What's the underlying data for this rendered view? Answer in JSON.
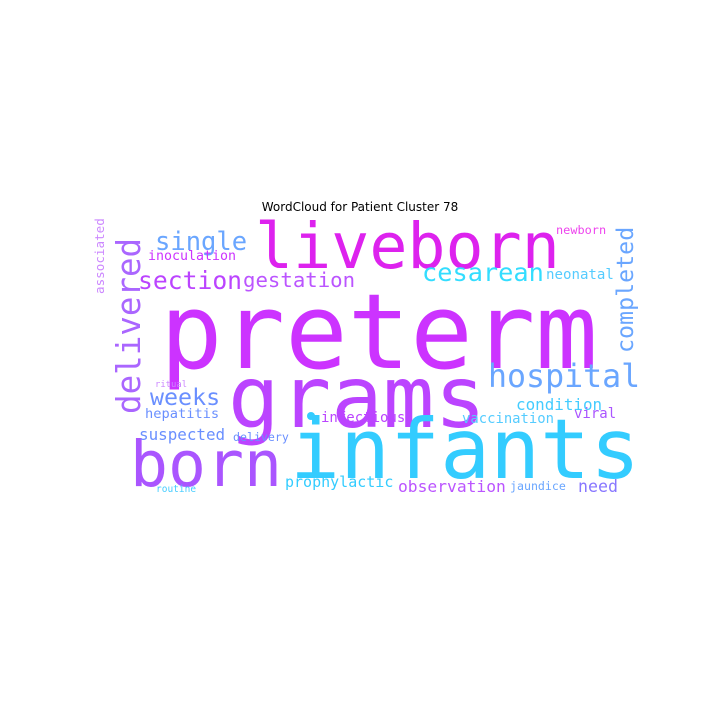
{
  "chart_data": {
    "type": "wordcloud",
    "title": "WordCloud for Patient Cluster 78",
    "colors": {
      "purple": "#cc33ff",
      "magenta": "#dd22ee",
      "violet": "#b455ff",
      "cyan": "#33ccff",
      "blue": "#6aa6ff",
      "lavender": "#aa77ff",
      "pink": "#ee44ee"
    },
    "words": [
      {
        "text": "preterm",
        "weight": 1.0,
        "color": "#cc33ff",
        "orientation": "horizontal"
      },
      {
        "text": "grams",
        "weight": 0.92,
        "color": "#bb44ff",
        "orientation": "horizontal"
      },
      {
        "text": "infants",
        "weight": 0.89,
        "color": "#33ccff",
        "orientation": "horizontal"
      },
      {
        "text": "born",
        "weight": 0.68,
        "color": "#aa55ff",
        "orientation": "horizontal"
      },
      {
        "text": "liveborn",
        "weight": 0.66,
        "color": "#dd22ee",
        "orientation": "horizontal"
      },
      {
        "text": "delivered",
        "weight": 0.39,
        "color": "#aa66ff",
        "orientation": "vertical"
      },
      {
        "text": "hospital",
        "weight": 0.37,
        "color": "#6aa6ff",
        "orientation": "horizontal"
      },
      {
        "text": "single",
        "weight": 0.28,
        "color": "#6aa6ff",
        "orientation": "horizontal"
      },
      {
        "text": "completed",
        "weight": 0.28,
        "color": "#6aa6ff",
        "orientation": "vertical"
      },
      {
        "text": "cesarean",
        "weight": 0.27,
        "color": "#33ddff",
        "orientation": "horizontal"
      },
      {
        "text": "section",
        "weight": 0.25,
        "color": "#bb44ff",
        "orientation": "horizontal"
      },
      {
        "text": "gestation",
        "weight": 0.24,
        "color": "#bb55ff",
        "orientation": "horizontal"
      },
      {
        "text": "weeks",
        "weight": 0.22,
        "color": "#6a8fff",
        "orientation": "horizontal"
      },
      {
        "text": "condition",
        "weight": 0.16,
        "color": "#44ccff",
        "orientation": "horizontal"
      },
      {
        "text": "suspected",
        "weight": 0.16,
        "color": "#6a8fff",
        "orientation": "horizontal"
      },
      {
        "text": "observation",
        "weight": 0.15,
        "color": "#bb55ff",
        "orientation": "horizontal"
      },
      {
        "text": "need",
        "weight": 0.15,
        "color": "#8877ff",
        "orientation": "horizontal"
      },
      {
        "text": "prophylactic",
        "weight": 0.13,
        "color": "#33ccff",
        "orientation": "horizontal"
      },
      {
        "text": "infectious",
        "weight": 0.13,
        "color": "#bb44ff",
        "orientation": "horizontal"
      },
      {
        "text": "vaccination",
        "weight": 0.13,
        "color": "#55ccff",
        "orientation": "horizontal"
      },
      {
        "text": "hepatitis",
        "weight": 0.13,
        "color": "#6a8fff",
        "orientation": "horizontal"
      },
      {
        "text": "inoculation",
        "weight": 0.12,
        "color": "#cc33ff",
        "orientation": "horizontal"
      },
      {
        "text": "neonatal",
        "weight": 0.12,
        "color": "#55ccff",
        "orientation": "horizontal"
      },
      {
        "text": "newborn",
        "weight": 0.11,
        "color": "#ee44ee",
        "orientation": "horizontal"
      },
      {
        "text": "viral",
        "weight": 0.12,
        "color": "#aa55ff",
        "orientation": "horizontal"
      },
      {
        "text": "delivery",
        "weight": 0.11,
        "color": "#6a8fff",
        "orientation": "horizontal"
      },
      {
        "text": "jaundice",
        "weight": 0.1,
        "color": "#6aa6ff",
        "orientation": "horizontal"
      },
      {
        "text": "associated",
        "weight": 0.1,
        "color": "#cc88ff",
        "orientation": "vertical"
      },
      {
        "text": "ritual",
        "weight": 0.07,
        "color": "#cc88ff",
        "orientation": "horizontal"
      },
      {
        "text": "routine",
        "weight": 0.07,
        "color": "#44ccff",
        "orientation": "horizontal"
      }
    ]
  }
}
